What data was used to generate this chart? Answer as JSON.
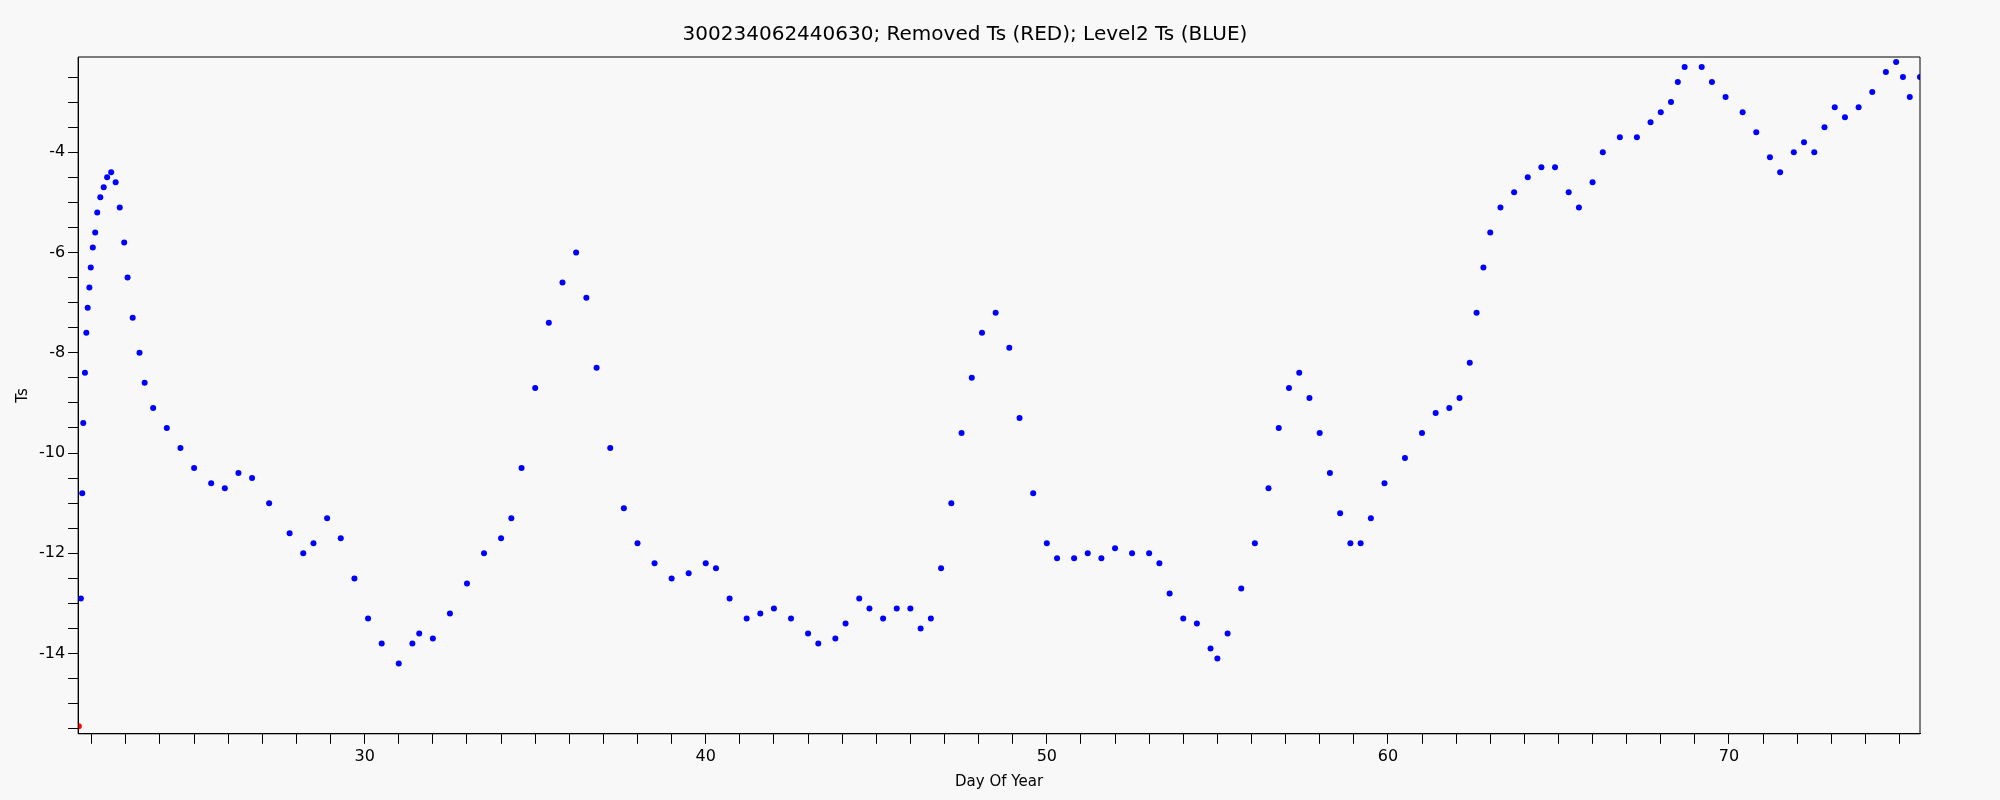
{
  "chart_data": {
    "type": "scatter",
    "title": "300234062440630; Removed Ts (RED); Level2 Ts (BLUE)",
    "xlabel": "Day Of Year",
    "ylabel": "Ts",
    "marker": "circle",
    "xlim": [
      21.6,
      75.6
    ],
    "ylim": [
      -15.6,
      -2.1
    ],
    "xticks": [
      {
        "value": 22,
        "label": null
      },
      {
        "value": 23,
        "label": null
      },
      {
        "value": 24,
        "label": null
      },
      {
        "value": 25,
        "label": null
      },
      {
        "value": 26,
        "label": null
      },
      {
        "value": 27,
        "label": null
      },
      {
        "value": 28,
        "label": null
      },
      {
        "value": 29,
        "label": null
      },
      30,
      {
        "value": 31,
        "label": null
      },
      {
        "value": 32,
        "label": null
      },
      {
        "value": 33,
        "label": null
      },
      {
        "value": 34,
        "label": null
      },
      {
        "value": 35,
        "label": null
      },
      {
        "value": 36,
        "label": null
      },
      {
        "value": 37,
        "label": null
      },
      {
        "value": 38,
        "label": null
      },
      {
        "value": 39,
        "label": null
      },
      40,
      {
        "value": 41,
        "label": null
      },
      {
        "value": 42,
        "label": null
      },
      {
        "value": 43,
        "label": null
      },
      {
        "value": 44,
        "label": null
      },
      {
        "value": 45,
        "label": null
      },
      {
        "value": 46,
        "label": null
      },
      {
        "value": 47,
        "label": null
      },
      {
        "value": 48,
        "label": null
      },
      {
        "value": 49,
        "label": null
      },
      50,
      {
        "value": 51,
        "label": null
      },
      {
        "value": 52,
        "label": null
      },
      {
        "value": 53,
        "label": null
      },
      {
        "value": 54,
        "label": null
      },
      {
        "value": 55,
        "label": null
      },
      {
        "value": 56,
        "label": null
      },
      {
        "value": 57,
        "label": null
      },
      {
        "value": 58,
        "label": null
      },
      {
        "value": 59,
        "label": null
      },
      60,
      {
        "value": 61,
        "label": null
      },
      {
        "value": 62,
        "label": null
      },
      {
        "value": 63,
        "label": null
      },
      {
        "value": 64,
        "label": null
      },
      {
        "value": 65,
        "label": null
      },
      {
        "value": 66,
        "label": null
      },
      {
        "value": 67,
        "label": null
      },
      {
        "value": 68,
        "label": null
      },
      {
        "value": 69,
        "label": null
      },
      70,
      {
        "value": 71,
        "label": null
      },
      {
        "value": 72,
        "label": null
      },
      {
        "value": 73,
        "label": null
      },
      {
        "value": 74,
        "label": null
      },
      {
        "value": 75,
        "label": null
      }
    ],
    "yticks": [
      {
        "value": -15.5,
        "label": null
      },
      {
        "value": -15,
        "label": null
      },
      {
        "value": -14.5,
        "label": null
      },
      -14,
      {
        "value": -13.5,
        "label": null
      },
      {
        "value": -13,
        "label": null
      },
      {
        "value": -12.5,
        "label": null
      },
      -12,
      {
        "value": -11.5,
        "label": null
      },
      {
        "value": -11,
        "label": null
      },
      {
        "value": -10.5,
        "label": null
      },
      -10,
      {
        "value": -9.5,
        "label": null
      },
      {
        "value": -9,
        "label": null
      },
      {
        "value": -8.5,
        "label": null
      },
      -8,
      {
        "value": -7.5,
        "label": null
      },
      {
        "value": -7,
        "label": null
      },
      {
        "value": -6.5,
        "label": null
      },
      -6,
      {
        "value": -5.5,
        "label": null
      },
      {
        "value": -5,
        "label": null
      },
      {
        "value": -4.5,
        "label": null
      },
      -4,
      {
        "value": -3.5,
        "label": null
      },
      {
        "value": -3,
        "label": null
      },
      {
        "value": -2.5,
        "label": null
      }
    ],
    "series": [
      {
        "color": "#ff0000",
        "x": [
          21.62
        ],
        "values": [
          -15.45
        ]
      },
      {
        "color": "#0000ff",
        "x": [
          21.68,
          21.72,
          21.75,
          21.8,
          21.84,
          21.88,
          21.93,
          21.97,
          22.03,
          22.1,
          22.16,
          22.25,
          22.35,
          22.45,
          22.57,
          22.7,
          22.82,
          22.95,
          23.05,
          23.2,
          23.4,
          23.55,
          23.8,
          24.2,
          24.6,
          25.0,
          25.5,
          25.9,
          26.3,
          26.7,
          27.2,
          27.8,
          28.2,
          28.5,
          28.9,
          29.3,
          29.7,
          30.1,
          30.5,
          31.0,
          31.4,
          31.6,
          32.0,
          32.5,
          33.0,
          33.5,
          34.0,
          34.3,
          34.6,
          35.0,
          35.4,
          35.8,
          36.2,
          36.5,
          36.8,
          37.2,
          37.6,
          38.0,
          38.5,
          39.0,
          39.5,
          40.0,
          40.3,
          40.7,
          41.2,
          41.6,
          42.0,
          42.5,
          43.0,
          43.3,
          43.8,
          44.1,
          44.5,
          44.8,
          45.2,
          45.6,
          46.0,
          46.3,
          46.6,
          46.9,
          47.2,
          47.5,
          47.8,
          48.1,
          48.5,
          48.9,
          49.2,
          49.6,
          50.0,
          50.3,
          50.8,
          51.2,
          51.6,
          52.0,
          52.5,
          53.0,
          53.3,
          53.6,
          54.0,
          54.4,
          54.8,
          55.0,
          55.3,
          55.7,
          56.1,
          56.5,
          56.8,
          57.1,
          57.4,
          57.7,
          58.0,
          58.3,
          58.6,
          58.9,
          59.2,
          59.5,
          59.9,
          60.5,
          61.0,
          61.4,
          61.8,
          62.1,
          62.4,
          62.6,
          62.8,
          63.0,
          63.3,
          63.7,
          64.1,
          64.5,
          64.9,
          65.3,
          65.6,
          66.0,
          66.3,
          66.8,
          67.3,
          67.7,
          68.0,
          68.3,
          68.5,
          68.7,
          69.2,
          69.5,
          69.9,
          70.4,
          70.8,
          71.2,
          71.5,
          71.9,
          72.2,
          72.5,
          72.8,
          73.1,
          73.4,
          73.8,
          74.2,
          74.6,
          74.9,
          75.1,
          75.3,
          75.6
        ],
        "values": [
          -12.9,
          -10.8,
          -9.4,
          -8.4,
          -7.6,
          -7.1,
          -6.7,
          -6.3,
          -5.9,
          -5.6,
          -5.2,
          -4.9,
          -4.7,
          -4.5,
          -4.4,
          -4.6,
          -5.1,
          -5.8,
          -6.5,
          -7.3,
          -8.0,
          -8.6,
          -9.1,
          -9.5,
          -9.9,
          -10.3,
          -10.6,
          -10.7,
          -10.4,
          -10.5,
          -11.0,
          -11.6,
          -12.0,
          -11.8,
          -11.3,
          -11.7,
          -12.5,
          -13.3,
          -13.8,
          -14.2,
          -13.8,
          -13.6,
          -13.7,
          -13.2,
          -12.6,
          -12.0,
          -11.7,
          -11.3,
          -10.3,
          -8.7,
          -7.4,
          -6.6,
          -6.0,
          -6.9,
          -8.3,
          -9.9,
          -11.1,
          -11.8,
          -12.2,
          -12.5,
          -12.4,
          -12.2,
          -12.3,
          -12.9,
          -13.3,
          -13.2,
          -13.1,
          -13.3,
          -13.6,
          -13.8,
          -13.7,
          -13.4,
          -12.9,
          -13.1,
          -13.3,
          -13.1,
          -13.1,
          -13.5,
          -13.3,
          -12.3,
          -11.0,
          -9.6,
          -8.5,
          -7.6,
          -7.2,
          -7.9,
          -9.3,
          -10.8,
          -11.8,
          -12.1,
          -12.1,
          -12.0,
          -12.1,
          -11.9,
          -12.0,
          -12.0,
          -12.2,
          -12.8,
          -13.3,
          -13.4,
          -13.9,
          -14.1,
          -13.6,
          -12.7,
          -11.8,
          -10.7,
          -9.5,
          -8.7,
          -8.4,
          -8.9,
          -9.6,
          -10.4,
          -11.2,
          -11.8,
          -11.8,
          -11.3,
          -10.6,
          -10.1,
          -9.6,
          -9.2,
          -9.1,
          -8.9,
          -8.2,
          -7.2,
          -6.3,
          -5.6,
          -5.1,
          -4.8,
          -4.5,
          -4.3,
          -4.3,
          -4.8,
          -5.1,
          -4.6,
          -4.0,
          -3.7,
          -3.7,
          -3.4,
          -3.2,
          -3.0,
          -2.6,
          -2.3,
          -2.3,
          -2.6,
          -2.9,
          -3.2,
          -3.6,
          -4.1,
          -4.4,
          -4.0,
          -3.8,
          -4.0,
          -3.5,
          -3.1,
          -3.3,
          -3.1,
          -2.8,
          -2.4,
          -2.2,
          -2.5,
          -2.9,
          -2.5
        ]
      }
    ]
  }
}
